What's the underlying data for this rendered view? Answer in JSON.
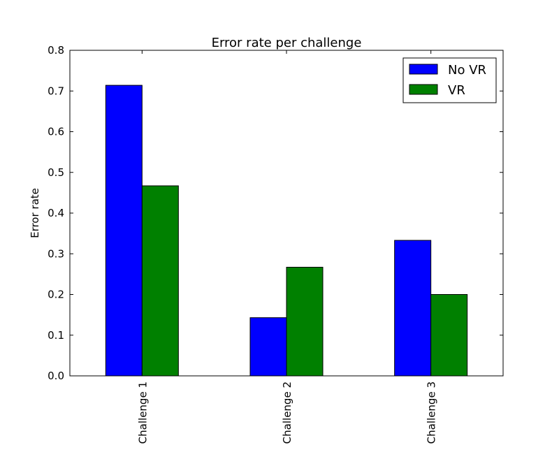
{
  "chart_data": {
    "type": "bar",
    "title": "Error rate per challenge",
    "xlabel": "",
    "ylabel": "Error rate",
    "categories": [
      "Challenge 1",
      "Challenge 2",
      "Challenge 3"
    ],
    "series": [
      {
        "name": "No VR",
        "color": "#0000ff",
        "values": [
          0.714,
          0.143,
          0.333
        ]
      },
      {
        "name": "VR",
        "color": "#008000",
        "values": [
          0.467,
          0.267,
          0.2
        ]
      }
    ],
    "ylim": [
      0,
      0.8
    ],
    "yticks": [
      "0.0",
      "0.1",
      "0.2",
      "0.3",
      "0.4",
      "0.5",
      "0.6",
      "0.7",
      "0.8"
    ],
    "grid": false,
    "legend_position": "top-right"
  }
}
